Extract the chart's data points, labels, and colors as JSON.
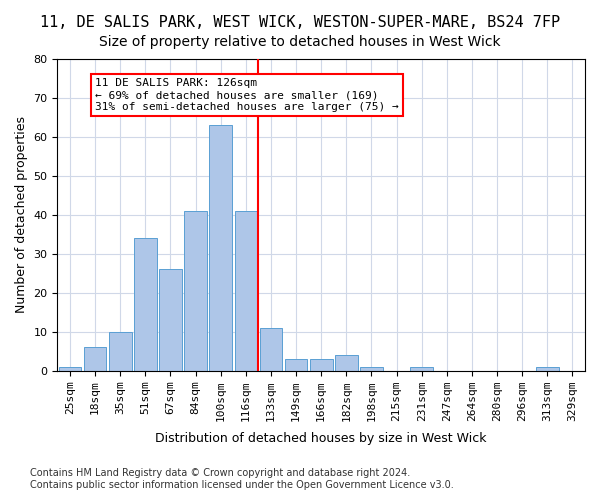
{
  "title_line1": "11, DE SALIS PARK, WEST WICK, WESTON-SUPER-MARE, BS24 7FP",
  "title_line2": "Size of property relative to detached houses in West Wick",
  "xlabel": "Distribution of detached houses by size in West Wick",
  "ylabel": "Number of detached properties",
  "categories": [
    "25sqm",
    "18sqm",
    "35sqm",
    "51sqm",
    "67sqm",
    "84sqm",
    "100sqm",
    "116sqm",
    "133sqm",
    "149sqm",
    "166sqm",
    "182sqm",
    "198sqm",
    "215sqm",
    "231sqm",
    "247sqm",
    "264sqm",
    "280sqm",
    "296sqm",
    "313sqm",
    "329sqm"
  ],
  "values": [
    1,
    6,
    10,
    34,
    26,
    41,
    63,
    41,
    11,
    3,
    3,
    4,
    1,
    0,
    1,
    0,
    0,
    0,
    0,
    1,
    0
  ],
  "bar_color": "#aec6e8",
  "bar_edge_color": "#5a9fd4",
  "vline_x": 8,
  "vline_color": "red",
  "annotation_text": "11 DE SALIS PARK: 126sqm\n← 69% of detached houses are smaller (169)\n31% of semi-detached houses are larger (75) →",
  "annotation_box_color": "white",
  "annotation_box_edge": "red",
  "ylim": [
    0,
    80
  ],
  "yticks": [
    0,
    10,
    20,
    30,
    40,
    50,
    60,
    70,
    80
  ],
  "grid_color": "#d0d8e8",
  "background_color": "white",
  "footnote": "Contains HM Land Registry data © Crown copyright and database right 2024.\nContains public sector information licensed under the Open Government Licence v3.0.",
  "title_fontsize": 11,
  "subtitle_fontsize": 10,
  "axis_label_fontsize": 9,
  "tick_fontsize": 8,
  "annotation_fontsize": 8,
  "footnote_fontsize": 7
}
